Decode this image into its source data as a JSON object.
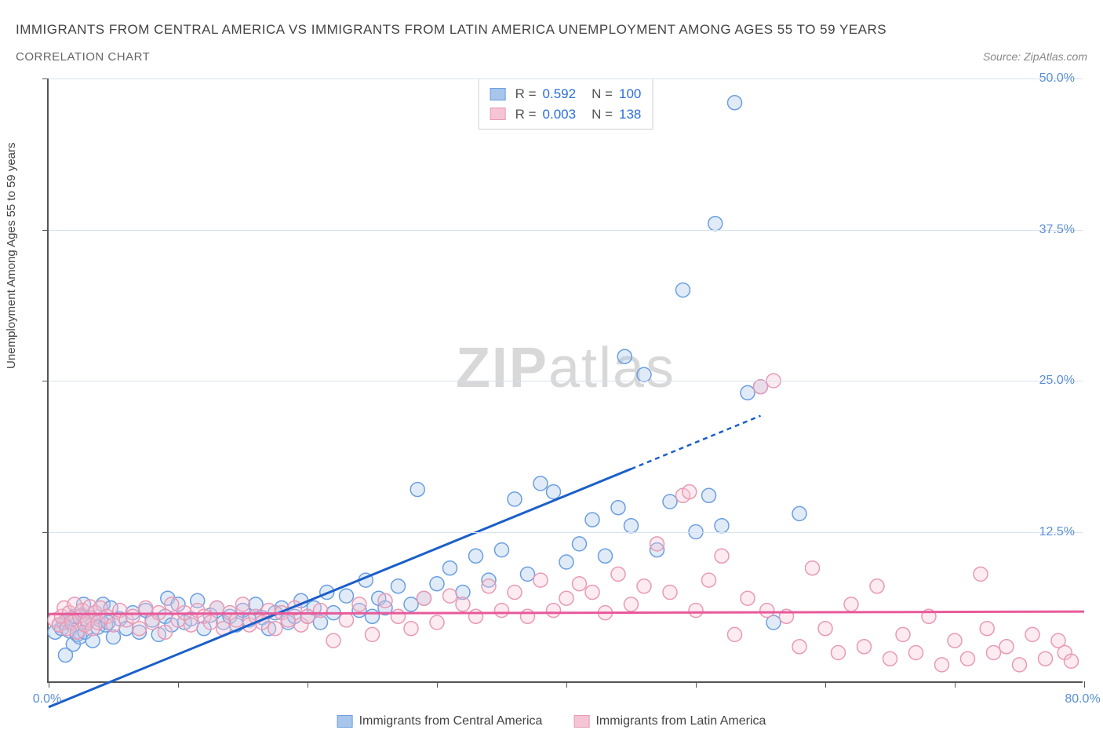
{
  "title_main": "IMMIGRANTS FROM CENTRAL AMERICA VS IMMIGRANTS FROM LATIN AMERICA UNEMPLOYMENT AMONG AGES 55 TO 59 YEARS",
  "title_sub": "CORRELATION CHART",
  "source": "Source: ZipAtlas.com",
  "y_axis_label": "Unemployment Among Ages 55 to 59 years",
  "watermark_bold": "ZIP",
  "watermark_light": "atlas",
  "chart": {
    "type": "scatter",
    "xlim": [
      0,
      80
    ],
    "ylim": [
      0,
      50
    ],
    "x_ticks": [
      0,
      10,
      20,
      30,
      40,
      50,
      60,
      70,
      80
    ],
    "y_ticks": [
      12.5,
      25.0,
      37.5,
      50.0
    ],
    "x_tick_labels_shown": {
      "0": "0.0%",
      "80": "80.0%"
    },
    "y_tick_labels": [
      "12.5%",
      "25.0%",
      "37.5%",
      "50.0%"
    ],
    "background_color": "#ffffff",
    "grid_color": "#d8e2f0",
    "axis_color": "#555555",
    "tick_label_color": "#5a8fd6",
    "point_radius": 9,
    "point_stroke_width": 1.5,
    "point_fill_opacity": 0.35,
    "series": [
      {
        "name": "Immigrants from Central America",
        "color_stroke": "#6a9fe0",
        "color_fill": "#a8c5ec",
        "trend_color": "#1b5fc9",
        "R": "0.592",
        "N": "100",
        "trend": {
          "x1": 0,
          "y1": -2,
          "x2_solid": 45,
          "y2_solid": 17.7,
          "x2_dash": 55,
          "y2_dash": 22.1
        },
        "points": [
          [
            0.5,
            4.2
          ],
          [
            0.8,
            4.8
          ],
          [
            1.0,
            4.5
          ],
          [
            1.2,
            5.0
          ],
          [
            1.3,
            2.3
          ],
          [
            1.4,
            5.2
          ],
          [
            1.6,
            4.3
          ],
          [
            1.8,
            5.3
          ],
          [
            1.9,
            3.2
          ],
          [
            2.0,
            5.5
          ],
          [
            2.2,
            4.0
          ],
          [
            2.4,
            3.8
          ],
          [
            2.6,
            5.6
          ],
          [
            2.7,
            6.5
          ],
          [
            2.8,
            4.2
          ],
          [
            3.0,
            5.0
          ],
          [
            3.2,
            5.4
          ],
          [
            3.4,
            3.5
          ],
          [
            3.6,
            5.8
          ],
          [
            3.8,
            4.6
          ],
          [
            4.0,
            5.2
          ],
          [
            4.2,
            6.5
          ],
          [
            4.4,
            4.8
          ],
          [
            4.6,
            5.0
          ],
          [
            4.8,
            6.2
          ],
          [
            5.0,
            3.8
          ],
          [
            5.5,
            5.3
          ],
          [
            6.0,
            4.5
          ],
          [
            6.5,
            5.8
          ],
          [
            7.0,
            4.2
          ],
          [
            7.5,
            6.0
          ],
          [
            8.0,
            5.2
          ],
          [
            8.5,
            4.0
          ],
          [
            9.0,
            5.5
          ],
          [
            9.2,
            7.0
          ],
          [
            9.5,
            4.8
          ],
          [
            10.0,
            6.5
          ],
          [
            10.5,
            5.0
          ],
          [
            11.0,
            5.3
          ],
          [
            11.5,
            6.8
          ],
          [
            12.0,
            4.5
          ],
          [
            12.5,
            5.6
          ],
          [
            13.0,
            6.2
          ],
          [
            13.5,
            5.0
          ],
          [
            14.0,
            5.5
          ],
          [
            14.5,
            4.8
          ],
          [
            15.0,
            6.0
          ],
          [
            15.5,
            5.2
          ],
          [
            16.0,
            6.5
          ],
          [
            16.5,
            5.4
          ],
          [
            17.0,
            4.5
          ],
          [
            17.5,
            5.8
          ],
          [
            18.0,
            6.2
          ],
          [
            18.5,
            5.0
          ],
          [
            19.0,
            5.5
          ],
          [
            19.5,
            6.8
          ],
          [
            20.0,
            5.5
          ],
          [
            20.5,
            6.2
          ],
          [
            21.0,
            5.0
          ],
          [
            21.5,
            7.5
          ],
          [
            22.0,
            5.8
          ],
          [
            23.0,
            7.2
          ],
          [
            24.0,
            6.0
          ],
          [
            24.5,
            8.5
          ],
          [
            25.0,
            5.5
          ],
          [
            25.5,
            7.0
          ],
          [
            26.0,
            6.2
          ],
          [
            27.0,
            8.0
          ],
          [
            28.0,
            6.5
          ],
          [
            28.5,
            16.0
          ],
          [
            29.0,
            7.0
          ],
          [
            30.0,
            8.2
          ],
          [
            31.0,
            9.5
          ],
          [
            32.0,
            7.5
          ],
          [
            33.0,
            10.5
          ],
          [
            34.0,
            8.5
          ],
          [
            35.0,
            11.0
          ],
          [
            36.0,
            15.2
          ],
          [
            37.0,
            9.0
          ],
          [
            38.0,
            16.5
          ],
          [
            39.0,
            15.8
          ],
          [
            40.0,
            10.0
          ],
          [
            41.0,
            11.5
          ],
          [
            42.0,
            13.5
          ],
          [
            43.0,
            10.5
          ],
          [
            44.0,
            14.5
          ],
          [
            44.5,
            27.0
          ],
          [
            45.0,
            13.0
          ],
          [
            46.0,
            25.5
          ],
          [
            47.0,
            11.0
          ],
          [
            48.0,
            15.0
          ],
          [
            49.0,
            32.5
          ],
          [
            50.0,
            12.5
          ],
          [
            51.0,
            15.5
          ],
          [
            51.5,
            38.0
          ],
          [
            52.0,
            13.0
          ],
          [
            53.0,
            48.0
          ],
          [
            54.0,
            24.0
          ],
          [
            55.0,
            24.5
          ],
          [
            56.0,
            5.0
          ],
          [
            58.0,
            14.0
          ]
        ]
      },
      {
        "name": "Immigrants from Latin America",
        "color_stroke": "#e89ab5",
        "color_fill": "#f5c5d5",
        "trend_color": "#e85a9a",
        "R": "0.003",
        "N": "138",
        "trend": {
          "x1": 0,
          "y1": 5.7,
          "x2_solid": 80,
          "y2_solid": 5.9,
          "x2_dash": 80,
          "y2_dash": 5.9
        },
        "points": [
          [
            0.5,
            5.2
          ],
          [
            0.8,
            4.8
          ],
          [
            1.0,
            5.5
          ],
          [
            1.2,
            6.2
          ],
          [
            1.4,
            4.5
          ],
          [
            1.6,
            5.8
          ],
          [
            1.8,
            5.0
          ],
          [
            2.0,
            6.5
          ],
          [
            2.2,
            4.2
          ],
          [
            2.4,
            5.5
          ],
          [
            2.6,
            6.0
          ],
          [
            2.8,
            4.8
          ],
          [
            3.0,
            5.2
          ],
          [
            3.2,
            6.3
          ],
          [
            3.4,
            4.5
          ],
          [
            3.6,
            5.8
          ],
          [
            3.8,
            5.0
          ],
          [
            4.0,
            6.2
          ],
          [
            4.5,
            5.5
          ],
          [
            5.0,
            4.8
          ],
          [
            5.5,
            6.0
          ],
          [
            6.0,
            5.2
          ],
          [
            6.5,
            5.5
          ],
          [
            7.0,
            4.5
          ],
          [
            7.5,
            6.2
          ],
          [
            8.0,
            5.0
          ],
          [
            8.5,
            5.8
          ],
          [
            9.0,
            4.2
          ],
          [
            9.5,
            6.5
          ],
          [
            10.0,
            5.2
          ],
          [
            10.5,
            5.8
          ],
          [
            11.0,
            4.8
          ],
          [
            11.5,
            6.0
          ],
          [
            12.0,
            5.5
          ],
          [
            12.5,
            5.0
          ],
          [
            13.0,
            6.2
          ],
          [
            13.5,
            4.5
          ],
          [
            14.0,
            5.8
          ],
          [
            14.5,
            5.2
          ],
          [
            15.0,
            6.5
          ],
          [
            15.5,
            4.8
          ],
          [
            16.0,
            5.5
          ],
          [
            16.5,
            5.0
          ],
          [
            17.0,
            6.0
          ],
          [
            17.5,
            4.5
          ],
          [
            18.0,
            5.8
          ],
          [
            18.5,
            5.2
          ],
          [
            19.0,
            6.2
          ],
          [
            19.5,
            4.8
          ],
          [
            20.0,
            5.5
          ],
          [
            21.0,
            6.0
          ],
          [
            22.0,
            3.5
          ],
          [
            23.0,
            5.2
          ],
          [
            24.0,
            6.5
          ],
          [
            25.0,
            4.0
          ],
          [
            26.0,
            6.8
          ],
          [
            27.0,
            5.5
          ],
          [
            28.0,
            4.5
          ],
          [
            29.0,
            7.0
          ],
          [
            30.0,
            5.0
          ],
          [
            31.0,
            7.2
          ],
          [
            32.0,
            6.5
          ],
          [
            33.0,
            5.5
          ],
          [
            34.0,
            8.0
          ],
          [
            35.0,
            6.0
          ],
          [
            36.0,
            7.5
          ],
          [
            37.0,
            5.5
          ],
          [
            38.0,
            8.5
          ],
          [
            39.0,
            6.0
          ],
          [
            40.0,
            7.0
          ],
          [
            41.0,
            8.2
          ],
          [
            42.0,
            7.5
          ],
          [
            43.0,
            5.8
          ],
          [
            44.0,
            9.0
          ],
          [
            45.0,
            6.5
          ],
          [
            46.0,
            8.0
          ],
          [
            47.0,
            11.5
          ],
          [
            48.0,
            7.5
          ],
          [
            49.0,
            15.5
          ],
          [
            49.5,
            15.8
          ],
          [
            50.0,
            6.0
          ],
          [
            51.0,
            8.5
          ],
          [
            52.0,
            10.5
          ],
          [
            53.0,
            4.0
          ],
          [
            54.0,
            7.0
          ],
          [
            55.0,
            24.5
          ],
          [
            55.5,
            6.0
          ],
          [
            56.0,
            25.0
          ],
          [
            57.0,
            5.5
          ],
          [
            58.0,
            3.0
          ],
          [
            59.0,
            9.5
          ],
          [
            60.0,
            4.5
          ],
          [
            61.0,
            2.5
          ],
          [
            62.0,
            6.5
          ],
          [
            63.0,
            3.0
          ],
          [
            64.0,
            8.0
          ],
          [
            65.0,
            2.0
          ],
          [
            66.0,
            4.0
          ],
          [
            67.0,
            2.5
          ],
          [
            68.0,
            5.5
          ],
          [
            69.0,
            1.5
          ],
          [
            70.0,
            3.5
          ],
          [
            71.0,
            2.0
          ],
          [
            72.0,
            9.0
          ],
          [
            72.5,
            4.5
          ],
          [
            73.0,
            2.5
          ],
          [
            74.0,
            3.0
          ],
          [
            75.0,
            1.5
          ],
          [
            76.0,
            4.0
          ],
          [
            77.0,
            2.0
          ],
          [
            78.0,
            3.5
          ],
          [
            78.5,
            2.5
          ],
          [
            79.0,
            1.8
          ]
        ]
      }
    ]
  },
  "legend_top": {
    "rows": [
      {
        "swatch_fill": "#a8c5ec",
        "swatch_stroke": "#6a9fe0",
        "r_label": "R =",
        "r": "0.592",
        "n_label": "N =",
        "n": "100"
      },
      {
        "swatch_fill": "#f5c5d5",
        "swatch_stroke": "#e89ab5",
        "r_label": "R =",
        "r": "0.003",
        "n_label": "N =",
        "n": "138"
      }
    ]
  },
  "legend_bottom": {
    "items": [
      {
        "swatch_fill": "#a8c5ec",
        "swatch_stroke": "#6a9fe0",
        "label": "Immigrants from Central America"
      },
      {
        "swatch_fill": "#f5c5d5",
        "swatch_stroke": "#e89ab5",
        "label": "Immigrants from Latin America"
      }
    ]
  }
}
